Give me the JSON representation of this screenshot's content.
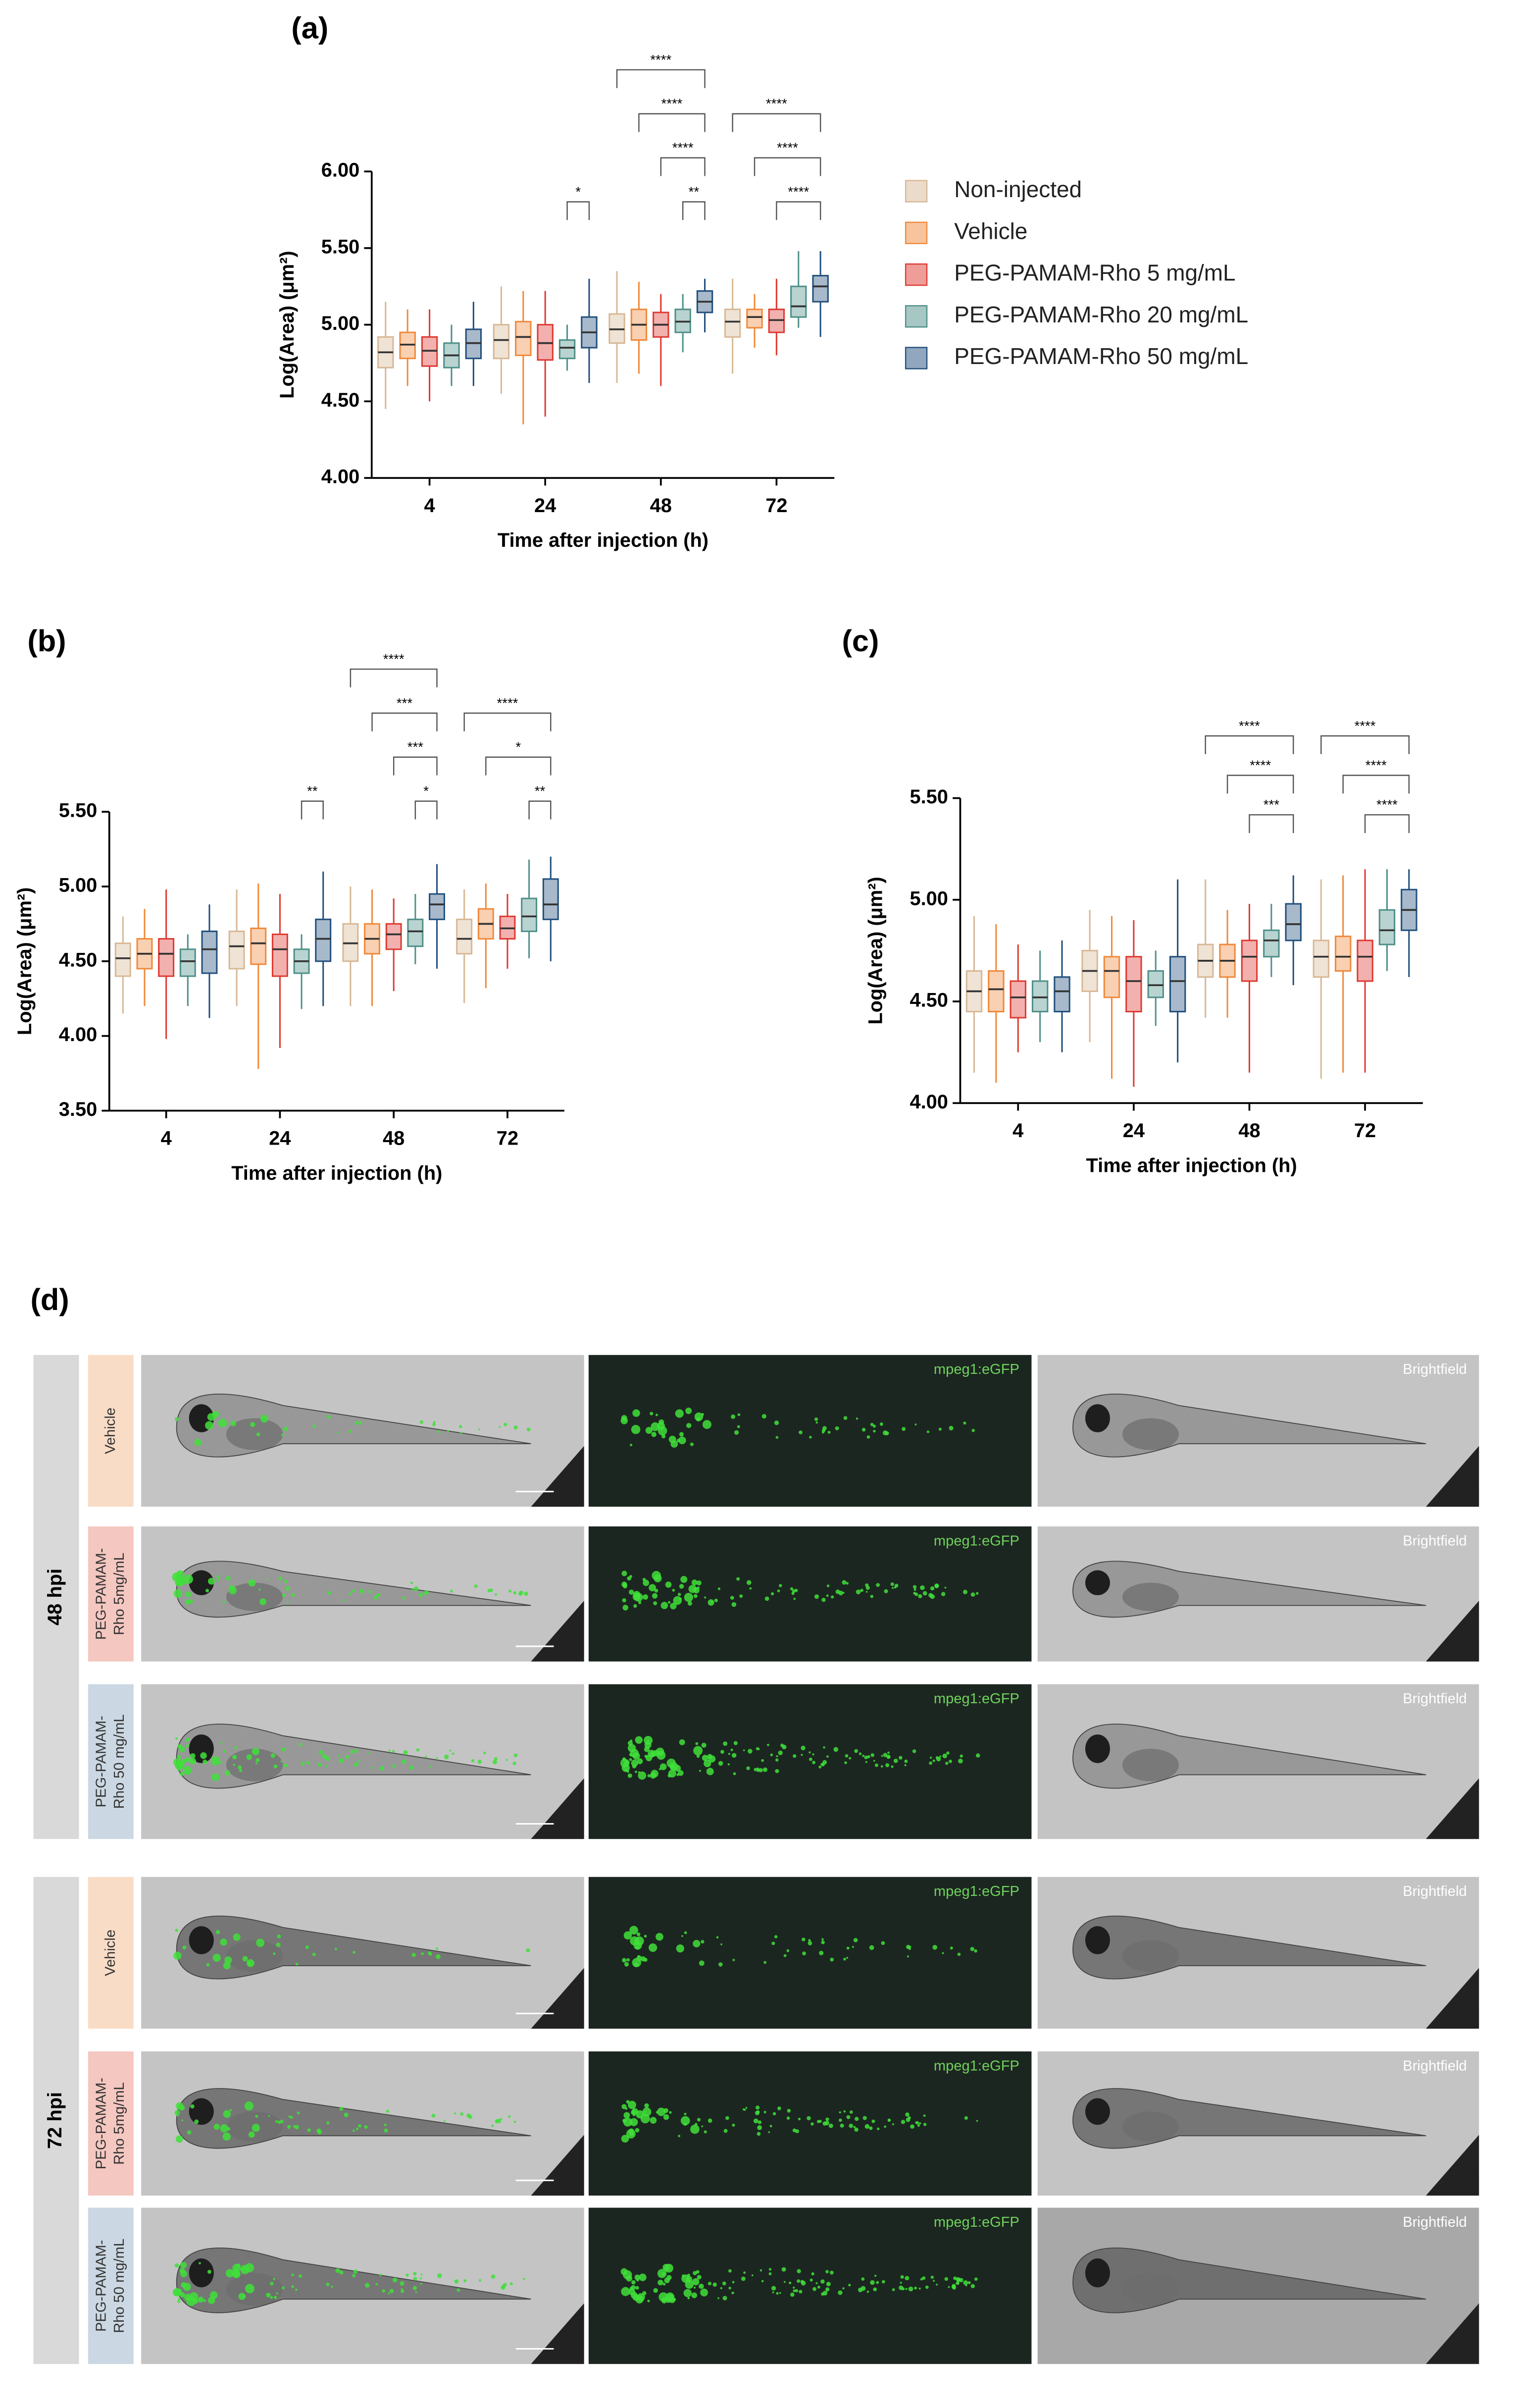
{
  "chart_data": [
    {
      "type": "box",
      "title": "(a)",
      "x_label": "Time after injection (h)",
      "y_label": "Log(Area) (μm²)",
      "legend": "right",
      "categories": [
        "4",
        "24",
        "48",
        "72"
      ],
      "ylim": [
        4,
        6
      ],
      "yticks": [
        {
          "value": 4,
          "label": "4.00"
        },
        {
          "value": 4.5,
          "label": "4.50"
        },
        {
          "value": 5,
          "label": "5.00"
        },
        {
          "value": 5.5,
          "label": "5.50"
        },
        {
          "value": 6,
          "label": "6.00"
        }
      ],
      "series": [
        {
          "name": "Non-injected",
          "color": "#d8b896",
          "min": [
            4.45,
            4.55,
            4.62,
            4.68
          ],
          "q1": [
            4.72,
            4.78,
            4.88,
            4.92
          ],
          "median": [
            4.82,
            4.9,
            4.97,
            5.02
          ],
          "q3": [
            4.92,
            5.0,
            5.07,
            5.1
          ],
          "max": [
            5.15,
            5.25,
            5.35,
            5.3
          ]
        },
        {
          "name": "Vehicle",
          "color": "#f08a3c",
          "min": [
            4.6,
            4.35,
            4.68,
            4.85
          ],
          "q1": [
            4.78,
            4.8,
            4.9,
            4.98
          ],
          "median": [
            4.87,
            4.92,
            5.0,
            5.05
          ],
          "q3": [
            4.95,
            5.02,
            5.1,
            5.1
          ],
          "max": [
            5.1,
            5.22,
            5.28,
            5.2
          ]
        },
        {
          "name": "PEG-PAMAM-Rho 5 mg/mL",
          "color": "#de3b34",
          "min": [
            4.5,
            4.4,
            4.6,
            4.8
          ],
          "q1": [
            4.73,
            4.77,
            4.92,
            4.95
          ],
          "median": [
            4.83,
            4.88,
            5.0,
            5.03
          ],
          "q3": [
            4.92,
            5.0,
            5.08,
            5.1
          ],
          "max": [
            5.1,
            5.22,
            5.2,
            5.3
          ]
        },
        {
          "name": "PEG-PAMAM-Rho 20 mg/mL",
          "color": "#4f9089",
          "min": [
            4.6,
            4.7,
            4.82,
            4.98
          ],
          "q1": [
            4.72,
            4.78,
            4.95,
            5.05
          ],
          "median": [
            4.8,
            4.85,
            5.02,
            5.12
          ],
          "q3": [
            4.88,
            4.9,
            5.1,
            5.25
          ],
          "max": [
            5.0,
            5.0,
            5.2,
            5.48
          ]
        },
        {
          "name": "PEG-PAMAM-Rho 50 mg/mL",
          "color": "#22507d",
          "min": [
            4.6,
            4.62,
            4.95,
            4.92
          ],
          "q1": [
            4.78,
            4.85,
            5.08,
            5.15
          ],
          "median": [
            4.88,
            4.95,
            5.15,
            5.25
          ],
          "q3": [
            4.97,
            5.05,
            5.22,
            5.32
          ],
          "max": [
            5.15,
            5.3,
            5.3,
            5.48
          ]
        }
      ],
      "brackets": [
        {
          "category": "24",
          "from": "PEG-PAMAM-Rho 20 mg/mL",
          "to": "PEG-PAMAM-Rho 50 mg/mL",
          "label": "*"
        },
        {
          "category": "48",
          "from": "Non-injected",
          "to": "PEG-PAMAM-Rho 50 mg/mL",
          "label": "****"
        },
        {
          "category": "48",
          "from": "Vehicle",
          "to": "PEG-PAMAM-Rho 50 mg/mL",
          "label": "****"
        },
        {
          "category": "48",
          "from": "PEG-PAMAM-Rho 5 mg/mL",
          "to": "PEG-PAMAM-Rho 50 mg/mL",
          "label": "****"
        },
        {
          "category": "48",
          "from": "PEG-PAMAM-Rho 20 mg/mL",
          "to": "PEG-PAMAM-Rho 50 mg/mL",
          "label": "**"
        },
        {
          "category": "72",
          "from": "Non-injected",
          "to": "PEG-PAMAM-Rho 50 mg/mL",
          "label": "****"
        },
        {
          "category": "72",
          "from": "Vehicle",
          "to": "PEG-PAMAM-Rho 50 mg/mL",
          "label": "****"
        },
        {
          "category": "72",
          "from": "PEG-PAMAM-Rho 5 mg/mL",
          "to": "PEG-PAMAM-Rho 50 mg/mL",
          "label": "****"
        }
      ]
    },
    {
      "type": "box",
      "title": "(b)",
      "x_label": "Time after injection (h)",
      "y_label": "Log(Area) (μm²)",
      "legend": false,
      "categories": [
        "4",
        "24",
        "48",
        "72"
      ],
      "ylim": [
        3.5,
        5.5
      ],
      "yticks": [
        {
          "value": 3.5,
          "label": "3.50"
        },
        {
          "value": 4,
          "label": "4.00"
        },
        {
          "value": 4.5,
          "label": "4.50"
        },
        {
          "value": 5,
          "label": "5.00"
        },
        {
          "value": 5.5,
          "label": "5.50"
        }
      ],
      "series": [
        {
          "name": "Non-injected",
          "color": "#d8b896",
          "min": [
            4.15,
            4.2,
            4.2,
            4.22
          ],
          "q1": [
            4.4,
            4.45,
            4.5,
            4.55
          ],
          "median": [
            4.52,
            4.6,
            4.62,
            4.65
          ],
          "q3": [
            4.62,
            4.7,
            4.75,
            4.78
          ],
          "max": [
            4.8,
            4.98,
            5.0,
            4.98
          ]
        },
        {
          "name": "Vehicle",
          "color": "#f08a3c",
          "min": [
            4.2,
            3.78,
            4.2,
            4.32
          ],
          "q1": [
            4.45,
            4.48,
            4.55,
            4.65
          ],
          "median": [
            4.55,
            4.62,
            4.65,
            4.75
          ],
          "q3": [
            4.65,
            4.72,
            4.75,
            4.85
          ],
          "max": [
            4.85,
            5.02,
            4.98,
            5.02
          ]
        },
        {
          "name": "PEG-PAMAM-Rho 5 mg/mL",
          "color": "#de3b34",
          "min": [
            3.98,
            3.92,
            4.3,
            4.45
          ],
          "q1": [
            4.4,
            4.4,
            4.58,
            4.65
          ],
          "median": [
            4.55,
            4.58,
            4.68,
            4.72
          ],
          "q3": [
            4.65,
            4.68,
            4.75,
            4.8
          ],
          "max": [
            4.98,
            4.95,
            4.92,
            4.95
          ]
        },
        {
          "name": "PEG-PAMAM-Rho 20 mg/mL",
          "color": "#4f9089",
          "min": [
            4.2,
            4.18,
            4.48,
            4.52
          ],
          "q1": [
            4.4,
            4.42,
            4.6,
            4.7
          ],
          "median": [
            4.5,
            4.5,
            4.7,
            4.8
          ],
          "q3": [
            4.58,
            4.58,
            4.78,
            4.92
          ],
          "max": [
            4.68,
            4.68,
            4.95,
            5.18
          ]
        },
        {
          "name": "PEG-PAMAM-Rho 50 mg/mL",
          "color": "#22507d",
          "min": [
            4.12,
            4.2,
            4.45,
            4.5
          ],
          "q1": [
            4.42,
            4.5,
            4.78,
            4.78
          ],
          "median": [
            4.58,
            4.65,
            4.88,
            4.88
          ],
          "q3": [
            4.7,
            4.78,
            4.95,
            5.05
          ],
          "max": [
            4.88,
            5.1,
            5.15,
            5.2
          ]
        }
      ],
      "brackets": [
        {
          "category": "24",
          "from": "PEG-PAMAM-Rho 20 mg/mL",
          "to": "PEG-PAMAM-Rho 50 mg/mL",
          "label": "**"
        },
        {
          "category": "48",
          "from": "Non-injected",
          "to": "PEG-PAMAM-Rho 50 mg/mL",
          "label": "****"
        },
        {
          "category": "48",
          "from": "Vehicle",
          "to": "PEG-PAMAM-Rho 50 mg/mL",
          "label": "***"
        },
        {
          "category": "48",
          "from": "PEG-PAMAM-Rho 5 mg/mL",
          "to": "PEG-PAMAM-Rho 50 mg/mL",
          "label": "***"
        },
        {
          "category": "48",
          "from": "PEG-PAMAM-Rho 20 mg/mL",
          "to": "PEG-PAMAM-Rho 50 mg/mL",
          "label": "*"
        },
        {
          "category": "72",
          "from": "Non-injected",
          "to": "PEG-PAMAM-Rho 50 mg/mL",
          "label": "****"
        },
        {
          "category": "72",
          "from": "Vehicle",
          "to": "PEG-PAMAM-Rho 50 mg/mL",
          "label": "*"
        },
        {
          "category": "72",
          "from": "PEG-PAMAM-Rho 20 mg/mL",
          "to": "PEG-PAMAM-Rho 50 mg/mL",
          "label": "**"
        }
      ]
    },
    {
      "type": "box",
      "title": "(c)",
      "x_label": "Time after injection (h)",
      "y_label": "Log(Area) (μm²)",
      "legend": false,
      "categories": [
        "4",
        "24",
        "48",
        "72"
      ],
      "ylim": [
        4,
        5.5
      ],
      "yticks": [
        {
          "value": 4,
          "label": "4.00"
        },
        {
          "value": 4.5,
          "label": "4.50"
        },
        {
          "value": 5,
          "label": "5.00"
        },
        {
          "value": 5.5,
          "label": "5.50"
        }
      ],
      "series": [
        {
          "name": "Non-injected",
          "color": "#d8b896",
          "min": [
            4.15,
            4.3,
            4.42,
            4.12
          ],
          "q1": [
            4.45,
            4.55,
            4.62,
            4.62
          ],
          "median": [
            4.55,
            4.65,
            4.7,
            4.72
          ],
          "q3": [
            4.65,
            4.75,
            4.78,
            4.8
          ],
          "max": [
            4.92,
            4.95,
            5.1,
            5.1
          ]
        },
        {
          "name": "Vehicle",
          "color": "#f08a3c",
          "min": [
            4.1,
            4.12,
            4.42,
            4.15
          ],
          "q1": [
            4.45,
            4.52,
            4.62,
            4.65
          ],
          "median": [
            4.56,
            4.65,
            4.7,
            4.72
          ],
          "q3": [
            4.65,
            4.72,
            4.78,
            4.82
          ],
          "max": [
            4.88,
            4.92,
            4.95,
            5.12
          ]
        },
        {
          "name": "PEG-PAMAM-Rho 5 mg/mL",
          "color": "#de3b34",
          "min": [
            4.25,
            4.08,
            4.15,
            4.15
          ],
          "q1": [
            4.42,
            4.45,
            4.6,
            4.6
          ],
          "median": [
            4.52,
            4.6,
            4.72,
            4.72
          ],
          "q3": [
            4.6,
            4.72,
            4.8,
            4.8
          ],
          "max": [
            4.78,
            4.9,
            4.98,
            5.15
          ]
        },
        {
          "name": "PEG-PAMAM-Rho 20 mg/mL",
          "color": "#4f9089",
          "min": [
            4.3,
            4.38,
            4.62,
            4.65
          ],
          "q1": [
            4.45,
            4.52,
            4.72,
            4.78
          ],
          "median": [
            4.52,
            4.58,
            4.8,
            4.85
          ],
          "q3": [
            4.6,
            4.65,
            4.85,
            4.95
          ],
          "max": [
            4.75,
            4.75,
            4.98,
            5.15
          ]
        },
        {
          "name": "PEG-PAMAM-Rho 50 mg/mL",
          "color": "#22507d",
          "min": [
            4.25,
            4.2,
            4.58,
            4.62
          ],
          "q1": [
            4.45,
            4.45,
            4.8,
            4.85
          ],
          "median": [
            4.55,
            4.6,
            4.88,
            4.95
          ],
          "q3": [
            4.62,
            4.72,
            4.98,
            5.05
          ],
          "max": [
            4.8,
            5.1,
            5.12,
            5.15
          ]
        }
      ],
      "brackets": [
        {
          "category": "48",
          "from": "Non-injected",
          "to": "PEG-PAMAM-Rho 50 mg/mL",
          "label": "****"
        },
        {
          "category": "48",
          "from": "Vehicle",
          "to": "PEG-PAMAM-Rho 50 mg/mL",
          "label": "****"
        },
        {
          "category": "48",
          "from": "PEG-PAMAM-Rho 5 mg/mL",
          "to": "PEG-PAMAM-Rho 50 mg/mL",
          "label": "***"
        },
        {
          "category": "72",
          "from": "Non-injected",
          "to": "PEG-PAMAM-Rho 50 mg/mL",
          "label": "****"
        },
        {
          "category": "72",
          "from": "Vehicle",
          "to": "PEG-PAMAM-Rho 50 mg/mL",
          "label": "****"
        },
        {
          "category": "72",
          "from": "PEG-PAMAM-Rho 5 mg/mL",
          "to": "PEG-PAMAM-Rho 50 mg/mL",
          "label": "****"
        }
      ]
    }
  ],
  "panel_d": {
    "label": "(d)",
    "channels": [
      "mpeg1:eGFP",
      "Brightfield"
    ],
    "groups": [
      {
        "label": "48 hpi",
        "rows": [
          "Vehicle",
          "PEG-PAMAM-Rho 5mg/mL",
          "PEG-PAMAM-Rho 50 mg/mL"
        ]
      },
      {
        "label": "72 hpi",
        "rows": [
          "Vehicle",
          "PEG-PAMAM-Rho 5mg/mL",
          "PEG-PAMAM-Rho 50 mg/mL"
        ]
      }
    ]
  }
}
